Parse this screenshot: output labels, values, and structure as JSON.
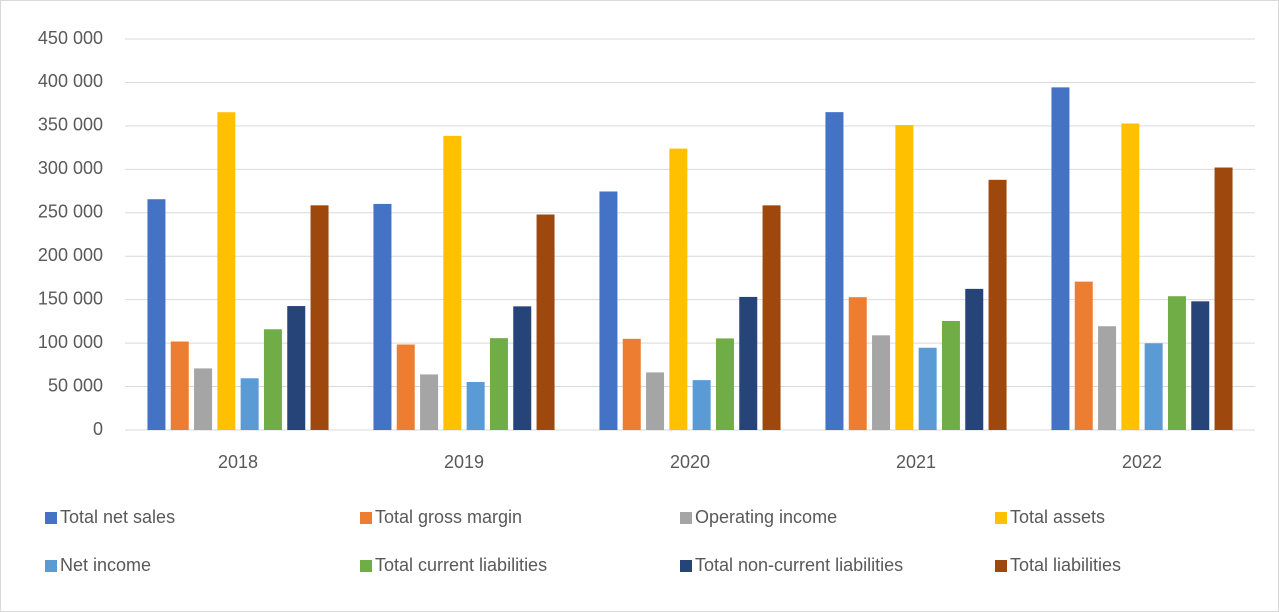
{
  "chart_data": {
    "type": "bar",
    "categories": [
      "2018",
      "2019",
      "2020",
      "2021",
      "2022"
    ],
    "series": [
      {
        "name": "Total net sales",
        "color": "#4472c4",
        "values": [
          265595,
          260174,
          274515,
          365817,
          394328
        ]
      },
      {
        "name": "Total gross margin",
        "color": "#ed7d31",
        "values": [
          101839,
          98392,
          104956,
          152836,
          170782
        ]
      },
      {
        "name": "Operating income",
        "color": "#a5a5a5",
        "values": [
          70898,
          63930,
          66288,
          108949,
          119437
        ]
      },
      {
        "name": "Total assets",
        "color": "#ffc000",
        "values": [
          365725,
          338516,
          323888,
          351002,
          352755
        ]
      },
      {
        "name": "Net income",
        "color": "#5b9bd5",
        "values": [
          59531,
          55256,
          57411,
          94680,
          99803
        ]
      },
      {
        "name": "Total current liabilities",
        "color": "#70ad47",
        "values": [
          115929,
          105718,
          105392,
          125481,
          153982
        ]
      },
      {
        "name": "Total non-current liabilities",
        "color": "#264478",
        "values": [
          142649,
          142310,
          153157,
          162431,
          148101
        ]
      },
      {
        "name": "Total liabilities",
        "color": "#9e480e",
        "values": [
          258578,
          248028,
          258549,
          287912,
          302083
        ]
      }
    ],
    "ylim": [
      0,
      450000
    ],
    "yticks": [
      0,
      {
        "value": 50000,
        "label": "50 000"
      },
      {
        "value": 100000,
        "label": "100 000"
      },
      {
        "value": 150000,
        "label": "150 000"
      },
      {
        "value": 200000,
        "label": "200 000"
      },
      {
        "value": 250000,
        "label": "250 000"
      },
      {
        "value": 300000,
        "label": "300 000"
      },
      {
        "value": 350000,
        "label": "350 000"
      },
      {
        "value": 400000,
        "label": "400 000"
      },
      {
        "value": 450000,
        "label": "450 000"
      }
    ],
    "grid": true,
    "legend": "bottom"
  }
}
